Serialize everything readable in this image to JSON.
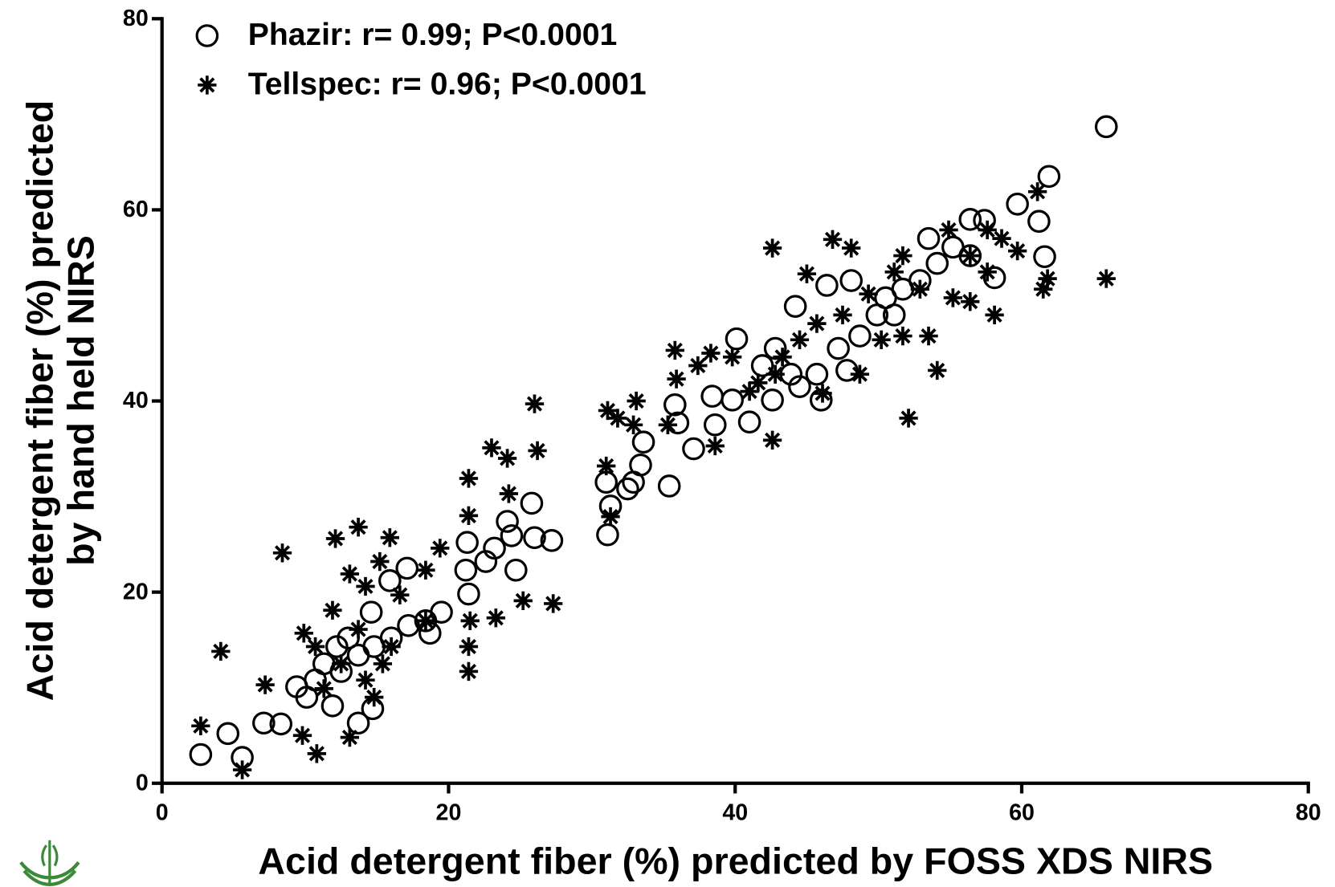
{
  "chart_data": {
    "type": "scatter",
    "x_label": "Acid detergent fiber (%) predicted by FOSS XDS NIRS",
    "y_label": [
      "Acid detergent fiber (%) predicted",
      "by hand held NIRS"
    ],
    "xlim": [
      0,
      80
    ],
    "xticks": [
      0,
      20,
      40,
      60,
      80
    ],
    "ylim": [
      0,
      80
    ],
    "yticks": [
      0,
      20,
      40,
      60,
      80
    ],
    "grid": false,
    "legend": "upper left",
    "series": [
      {
        "name": "Phazir: r= 0.99; P<0.0001",
        "marker": "circle",
        "color": "#000000",
        "x": [
          65.9,
          61.9,
          59.7,
          61.2,
          61.6,
          57.4,
          58.1,
          56.4,
          44.2,
          46.4,
          40.1,
          41.0,
          38.4,
          37.1,
          35.8,
          36.0,
          35.4,
          33.6,
          33.4,
          32.9,
          32.5,
          31.0,
          31.3,
          31.1,
          25.8,
          27.2,
          26.0,
          24.1,
          24.7,
          21.3,
          21.2,
          21.4,
          19.5,
          18.7,
          17.1,
          15.9,
          14.6,
          13.7,
          14.7,
          2.7,
          5.6,
          4.6,
          7.1,
          8.3,
          9.4,
          10.7,
          11.3,
          12.2,
          13.0,
          12.5,
          13.7,
          14.8,
          16.0,
          17.2,
          18.4,
          10.1,
          11.9,
          22.6,
          23.2,
          24.4,
          41.9,
          42.6,
          43.9,
          44.5,
          46.0,
          45.7,
          47.8,
          47.2,
          48.7,
          49.9,
          51.1,
          51.7,
          52.9,
          54.1,
          53.5,
          55.2,
          56.4,
          48.1,
          50.5,
          42.8,
          39.8,
          38.6
        ],
        "y": [
          68.7,
          63.5,
          60.6,
          58.8,
          55.1,
          58.9,
          52.9,
          59.0,
          49.9,
          52.1,
          46.5,
          37.8,
          40.5,
          35.0,
          39.6,
          37.7,
          31.1,
          35.7,
          33.3,
          31.5,
          30.8,
          31.5,
          29.0,
          26.0,
          29.3,
          25.4,
          25.7,
          27.4,
          22.3,
          25.2,
          22.3,
          19.8,
          17.9,
          15.7,
          22.5,
          21.2,
          17.9,
          6.3,
          7.8,
          3.0,
          2.7,
          5.2,
          6.3,
          6.2,
          10.1,
          10.8,
          12.5,
          14.3,
          15.2,
          11.7,
          13.4,
          14.3,
          15.2,
          16.5,
          17.0,
          9.0,
          8.1,
          23.2,
          24.6,
          25.9,
          43.7,
          40.1,
          42.8,
          41.5,
          40.1,
          42.8,
          43.2,
          45.5,
          46.8,
          49.0,
          49.0,
          51.7,
          52.6,
          54.4,
          57.0,
          56.1,
          55.2,
          52.6,
          50.8,
          45.5,
          40.1,
          37.5
        ]
      },
      {
        "name": "Tellspec: r= 0.96; P<0.0001",
        "marker": "asterisk",
        "color": "#000000",
        "x": [
          65.9,
          61.8,
          61.5,
          61.1,
          59.7,
          58.1,
          52.1,
          54.1,
          53.5,
          46.8,
          42.6,
          45.0,
          48.1,
          50.2,
          51.7,
          42.6,
          46.1,
          38.6,
          35.8,
          35.9,
          35.3,
          33.1,
          32.9,
          31.8,
          31.1,
          31.0,
          31.3,
          26.0,
          26.2,
          23.0,
          24.1,
          24.2,
          21.4,
          21.4,
          21.4,
          21.4,
          21.5,
          25.2,
          27.3,
          23.3,
          19.4,
          18.4,
          15.9,
          13.7,
          12.1,
          8.4,
          4.1,
          2.7,
          7.2,
          5.6,
          10.8,
          9.8,
          13.1,
          9.9,
          11.9,
          13.1,
          15.2,
          14.2,
          16.6,
          18.4,
          14.2,
          11.3,
          10.7,
          12.5,
          13.7,
          15.4,
          16.0,
          14.8,
          54.9,
          56.4,
          55.2,
          56.4,
          52.9,
          51.1,
          49.3,
          47.5,
          45.7,
          44.5,
          42.8,
          41.0,
          39.8,
          38.3,
          37.4,
          41.6,
          43.3,
          48.7,
          57.6,
          58.6,
          51.7,
          57.6
        ],
        "y": [
          52.8,
          52.8,
          51.7,
          61.9,
          55.7,
          49.0,
          38.2,
          43.2,
          46.8,
          56.9,
          56.0,
          53.3,
          56.0,
          46.4,
          46.8,
          35.9,
          40.8,
          35.3,
          45.3,
          42.3,
          37.5,
          40.0,
          37.5,
          38.2,
          39.0,
          33.2,
          27.9,
          39.7,
          34.8,
          35.1,
          34.0,
          30.3,
          31.9,
          28.0,
          14.3,
          11.7,
          17.0,
          19.1,
          18.8,
          17.3,
          24.6,
          22.3,
          25.7,
          26.8,
          25.6,
          24.1,
          13.8,
          6.0,
          10.3,
          1.4,
          3.1,
          5.0,
          4.8,
          15.7,
          18.1,
          21.9,
          23.2,
          20.6,
          19.7,
          17.0,
          10.8,
          9.9,
          14.3,
          12.5,
          16.1,
          12.5,
          14.3,
          9.0,
          57.9,
          55.2,
          50.8,
          50.4,
          51.7,
          53.5,
          51.2,
          49.0,
          48.1,
          46.4,
          42.8,
          41.0,
          44.6,
          45.0,
          43.7,
          41.9,
          44.6,
          42.8,
          53.5,
          57.0,
          55.2,
          57.9
        ]
      }
    ]
  }
}
